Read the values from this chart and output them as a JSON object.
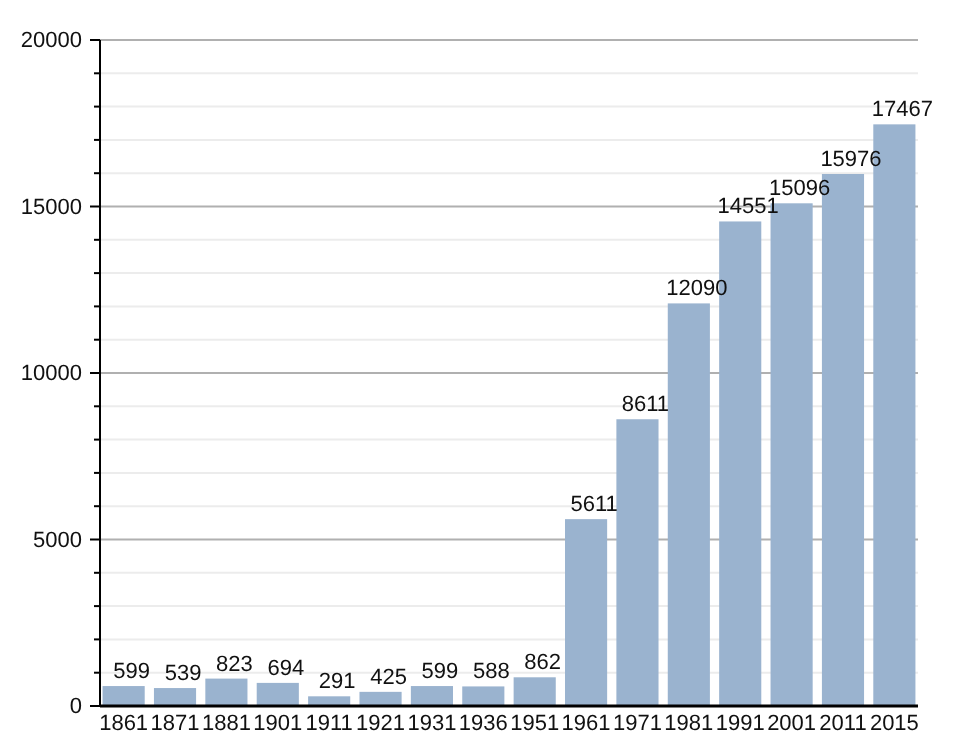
{
  "chart_data": {
    "type": "bar",
    "categories": [
      "1861",
      "1871",
      "1881",
      "1901",
      "1911",
      "1921",
      "1931",
      "1936",
      "1951",
      "1961",
      "1971",
      "1981",
      "1991",
      "2001",
      "2011",
      "2015"
    ],
    "values": [
      599,
      539,
      823,
      694,
      291,
      425,
      599,
      588,
      862,
      5611,
      8611,
      12090,
      14551,
      15096,
      15976,
      17467
    ],
    "color": "#9ab3cf",
    "ylim": [
      0,
      20000
    ],
    "yticks": [
      0,
      {
        "value": 1000,
        "label": null
      },
      {
        "value": 2000,
        "label": null
      },
      {
        "value": 3000,
        "label": null
      },
      {
        "value": 4000,
        "label": null
      },
      5000,
      {
        "value": 6000,
        "label": null
      },
      {
        "value": 7000,
        "label": null
      },
      {
        "value": 8000,
        "label": null
      },
      {
        "value": 9000,
        "label": null
      },
      10000,
      {
        "value": 11000,
        "label": null
      },
      {
        "value": 12000,
        "label": null
      },
      {
        "value": 13000,
        "label": null
      },
      {
        "value": 14000,
        "label": null
      },
      15000,
      {
        "value": 16000,
        "label": null
      },
      {
        "value": 17000,
        "label": null
      },
      {
        "value": 18000,
        "label": null
      },
      {
        "value": 19000,
        "label": null
      },
      20000
    ],
    "grid": true,
    "data_labels": true
  }
}
